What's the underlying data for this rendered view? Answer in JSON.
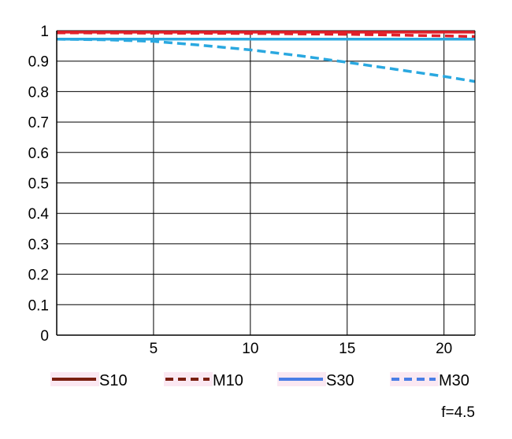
{
  "chart_data": {
    "type": "line",
    "xlim": [
      0,
      21.6
    ],
    "ylim": [
      0,
      1
    ],
    "x_ticks": [
      5,
      10,
      15,
      20
    ],
    "y_ticks": [
      0,
      0.1,
      0.2,
      0.3,
      0.4,
      0.5,
      0.6,
      0.7,
      0.8,
      0.9,
      1
    ],
    "y_tick_labels": [
      "0",
      "0.1",
      "0.2",
      "0.3",
      "0.4",
      "0.5",
      "0.6",
      "0.7",
      "0.8",
      "0.9",
      "1"
    ],
    "x_tick_labels": [
      "5",
      "10",
      "15",
      "20"
    ],
    "grid": true,
    "legend_position": "bottom",
    "annotation": "f=4.5",
    "series": [
      {
        "name": "S10",
        "color": "#e0202a",
        "legend_color": "#7a1f10",
        "dash": "solid",
        "x": [
          0,
          5,
          10,
          15,
          20,
          21.6
        ],
        "y": [
          0.995,
          0.995,
          0.995,
          0.995,
          0.995,
          0.995
        ]
      },
      {
        "name": "M10",
        "color": "#e0202a",
        "legend_color": "#7a1f10",
        "dash": "dashed",
        "x": [
          0,
          5,
          10,
          15,
          20,
          21.6
        ],
        "y": [
          0.993,
          0.992,
          0.991,
          0.988,
          0.983,
          0.981
        ]
      },
      {
        "name": "S30",
        "color": "#2aa8e0",
        "legend_color": "#4a7ee6",
        "dash": "solid",
        "x": [
          0,
          5,
          10,
          15,
          20,
          21.6
        ],
        "y": [
          0.972,
          0.972,
          0.972,
          0.972,
          0.972,
          0.972
        ]
      },
      {
        "name": "M30",
        "color": "#2aa8e0",
        "legend_color": "#4a7ee6",
        "dash": "dashed",
        "x": [
          0,
          2.5,
          5,
          7.5,
          10,
          12.5,
          15,
          17.5,
          20,
          21.6
        ],
        "y": [
          0.972,
          0.97,
          0.965,
          0.952,
          0.937,
          0.918,
          0.896,
          0.873,
          0.85,
          0.833
        ]
      }
    ]
  }
}
